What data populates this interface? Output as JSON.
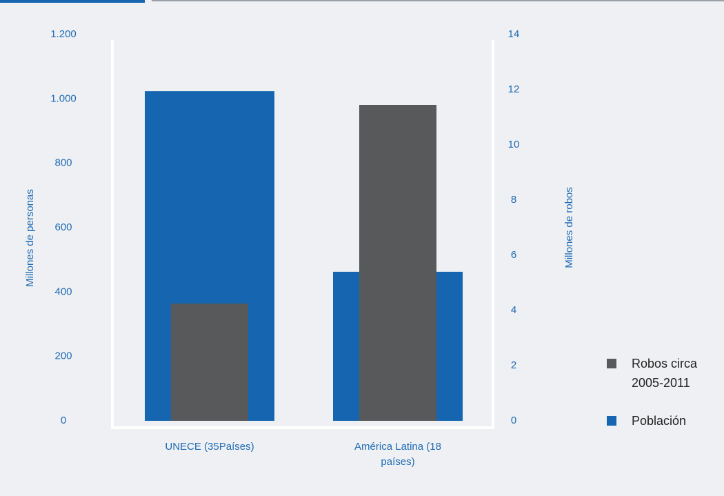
{
  "chart_data": {
    "type": "bar",
    "categories": [
      "UNECE (35Países)",
      "América Latina (18 países)"
    ],
    "series": [
      {
        "name": "Población",
        "color": "#1565b0",
        "values": [
          1024,
          463
        ]
      },
      {
        "name": "Robos circa 2005-2011",
        "color": "#58595b",
        "values": [
          4.25,
          11.45
        ],
        "axis": "y2"
      }
    ],
    "y_label": "Millones de personas",
    "y2_label": "Millones de robos",
    "ylim": [
      0,
      1200
    ],
    "yticks": [
      0,
      200,
      400,
      600,
      800,
      {
        "value": 1000,
        "label": "1.000"
      },
      {
        "value": 1200,
        "label": "1.200"
      }
    ],
    "y2lim": [
      0,
      14
    ],
    "y2ticks": [
      0,
      2,
      4,
      6,
      8,
      10,
      12,
      14
    ],
    "legend": "right"
  }
}
